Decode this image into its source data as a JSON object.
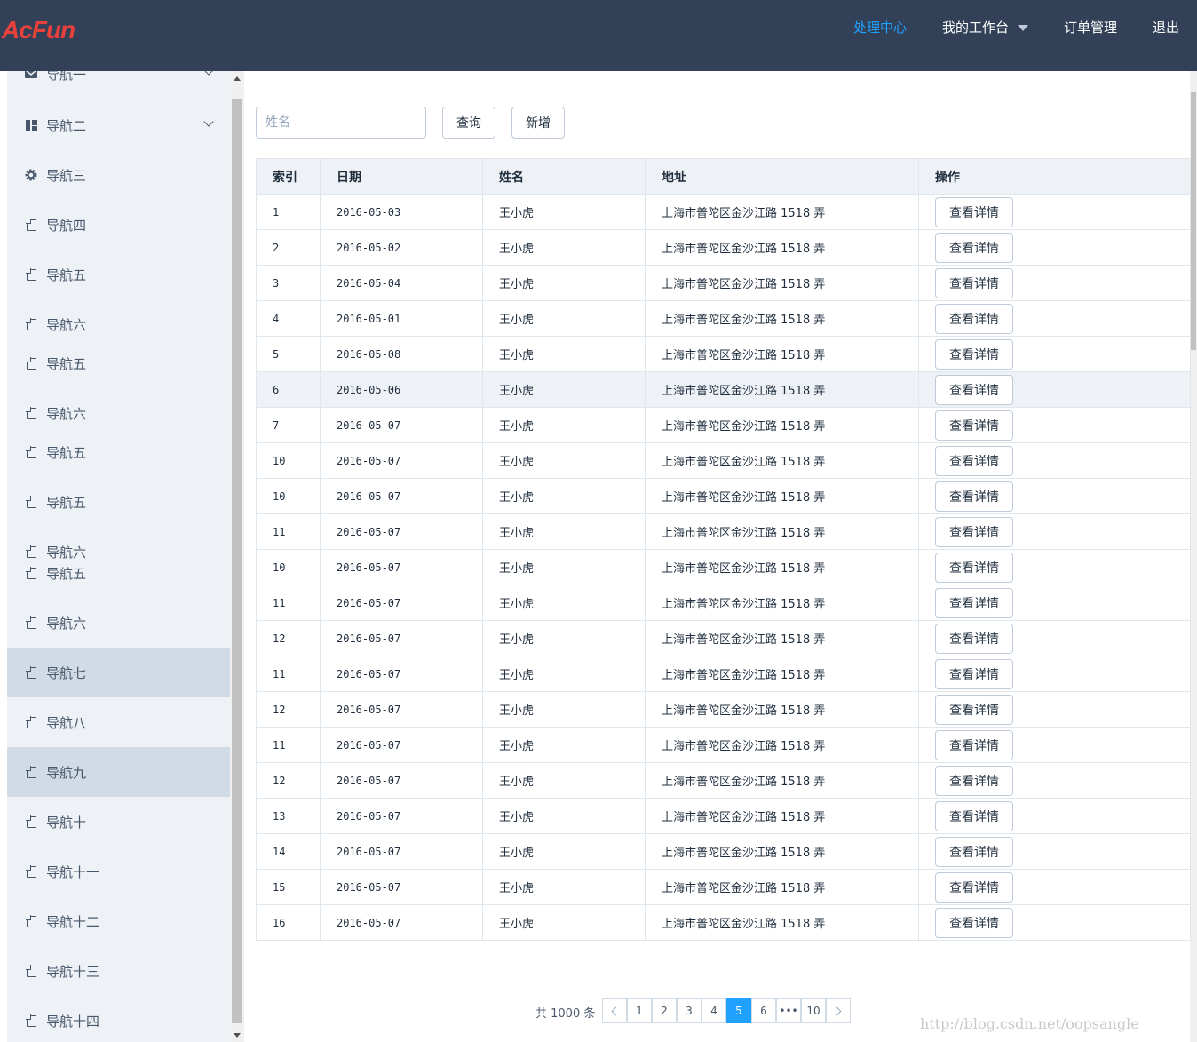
{
  "header": {
    "logo": "AcFun",
    "menu": [
      {
        "label": "处理中心",
        "active": true
      },
      {
        "label": "我的工作台",
        "active": false,
        "dropdown": true
      },
      {
        "label": "订单管理",
        "active": false
      },
      {
        "label": "退出",
        "active": false
      }
    ]
  },
  "sidebar": {
    "items": [
      {
        "label": "导航一",
        "icon": "message-icon",
        "submenu": true
      },
      {
        "label": "导航二",
        "icon": "menu-icon",
        "submenu": true
      },
      {
        "label": "导航三",
        "icon": "setting-icon"
      },
      {
        "label": "导航四",
        "icon": "document-icon"
      },
      {
        "label": "导航五",
        "icon": "document-icon"
      },
      {
        "label": "导航六",
        "icon": "document-icon"
      },
      {
        "label": "导航五",
        "icon": "document-icon"
      },
      {
        "label": "导航六",
        "icon": "document-icon"
      },
      {
        "label": "导航五",
        "icon": "document-icon"
      },
      {
        "label": "导航五",
        "icon": "document-icon"
      },
      {
        "label": "导航六",
        "icon": "document-icon"
      },
      {
        "label": "导航五",
        "icon": "document-icon"
      },
      {
        "label": "导航六",
        "icon": "document-icon"
      },
      {
        "label": "导航七",
        "icon": "document-icon",
        "highlighted": true
      },
      {
        "label": "导航八",
        "icon": "document-icon"
      },
      {
        "label": "导航九",
        "icon": "document-icon",
        "highlighted": true
      },
      {
        "label": "导航十",
        "icon": "document-icon"
      },
      {
        "label": "导航十一",
        "icon": "document-icon"
      },
      {
        "label": "导航十二",
        "icon": "document-icon"
      },
      {
        "label": "导航十三",
        "icon": "document-icon"
      },
      {
        "label": "导航十四",
        "icon": "document-icon"
      }
    ]
  },
  "toolbar": {
    "search_placeholder": "姓名",
    "search_value": "",
    "query_label": "查询",
    "add_label": "新增"
  },
  "table": {
    "columns": [
      "索引",
      "日期",
      "姓名",
      "地址",
      "操作"
    ],
    "action_label": "查看详情",
    "rows": [
      {
        "index": "1",
        "date": "2016-05-03",
        "name": "王小虎",
        "address": "上海市普陀区金沙江路 1518 弄"
      },
      {
        "index": "2",
        "date": "2016-05-02",
        "name": "王小虎",
        "address": "上海市普陀区金沙江路 1518 弄"
      },
      {
        "index": "3",
        "date": "2016-05-04",
        "name": "王小虎",
        "address": "上海市普陀区金沙江路 1518 弄"
      },
      {
        "index": "4",
        "date": "2016-05-01",
        "name": "王小虎",
        "address": "上海市普陀区金沙江路 1518 弄"
      },
      {
        "index": "5",
        "date": "2016-05-08",
        "name": "王小虎",
        "address": "上海市普陀区金沙江路 1518 弄"
      },
      {
        "index": "6",
        "date": "2016-05-06",
        "name": "王小虎",
        "address": "上海市普陀区金沙江路 1518 弄",
        "hover": true
      },
      {
        "index": "7",
        "date": "2016-05-07",
        "name": "王小虎",
        "address": "上海市普陀区金沙江路 1518 弄"
      },
      {
        "index": "10",
        "date": "2016-05-07",
        "name": "王小虎",
        "address": "上海市普陀区金沙江路 1518 弄"
      },
      {
        "index": "10",
        "date": "2016-05-07",
        "name": "王小虎",
        "address": "上海市普陀区金沙江路 1518 弄"
      },
      {
        "index": "11",
        "date": "2016-05-07",
        "name": "王小虎",
        "address": "上海市普陀区金沙江路 1518 弄"
      },
      {
        "index": "10",
        "date": "2016-05-07",
        "name": "王小虎",
        "address": "上海市普陀区金沙江路 1518 弄"
      },
      {
        "index": "11",
        "date": "2016-05-07",
        "name": "王小虎",
        "address": "上海市普陀区金沙江路 1518 弄"
      },
      {
        "index": "12",
        "date": "2016-05-07",
        "name": "王小虎",
        "address": "上海市普陀区金沙江路 1518 弄"
      },
      {
        "index": "11",
        "date": "2016-05-07",
        "name": "王小虎",
        "address": "上海市普陀区金沙江路 1518 弄"
      },
      {
        "index": "12",
        "date": "2016-05-07",
        "name": "王小虎",
        "address": "上海市普陀区金沙江路 1518 弄"
      },
      {
        "index": "11",
        "date": "2016-05-07",
        "name": "王小虎",
        "address": "上海市普陀区金沙江路 1518 弄"
      },
      {
        "index": "12",
        "date": "2016-05-07",
        "name": "王小虎",
        "address": "上海市普陀区金沙江路 1518 弄"
      },
      {
        "index": "13",
        "date": "2016-05-07",
        "name": "王小虎",
        "address": "上海市普陀区金沙江路 1518 弄"
      },
      {
        "index": "14",
        "date": "2016-05-07",
        "name": "王小虎",
        "address": "上海市普陀区金沙江路 1518 弄"
      },
      {
        "index": "15",
        "date": "2016-05-07",
        "name": "王小虎",
        "address": "上海市普陀区金沙江路 1518 弄"
      },
      {
        "index": "16",
        "date": "2016-05-07",
        "name": "王小虎",
        "address": "上海市普陀区金沙江路 1518 弄"
      }
    ]
  },
  "pagination": {
    "total_text": "共 1000 条",
    "pages": [
      "1",
      "2",
      "3",
      "4",
      "5",
      "6",
      "•••",
      "10"
    ],
    "current": "5"
  },
  "watermark": "http://blog.csdn.net/oopsangle",
  "colors": {
    "header_bg": "#324157",
    "sidebar_bg": "#eef1f6",
    "accent": "#20a0ff",
    "logo": "#e8403a"
  }
}
